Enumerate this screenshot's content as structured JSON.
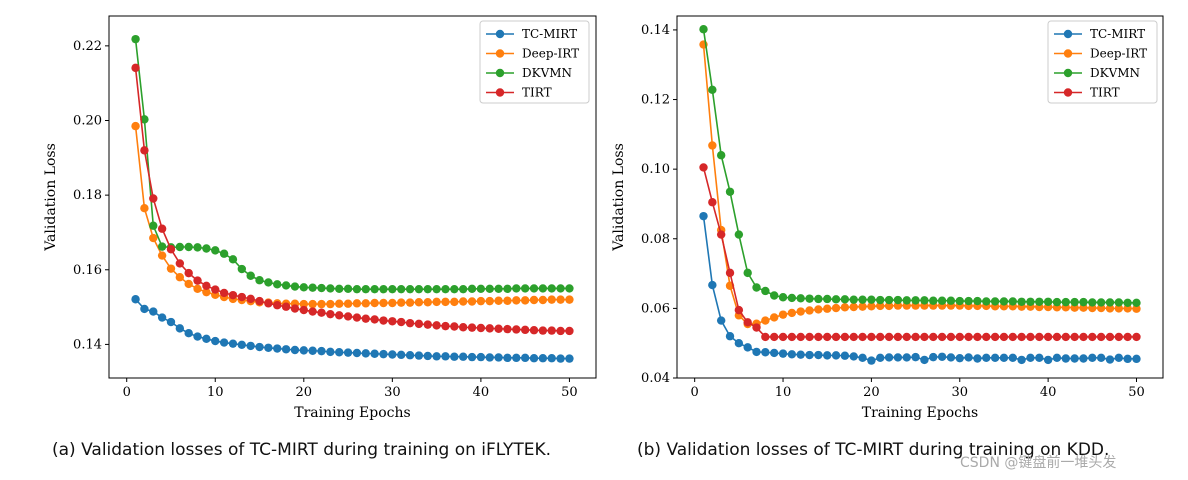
{
  "captions": {
    "a": "(a) Validation losses of TC-MIRT during training on iFLYTEK.",
    "b": "(b) Validation losses of TC-MIRT during training on KDD."
  },
  "watermark": "CSDN @键盘前一堆头发",
  "colors": {
    "TC-MIRT": "#1f77b4",
    "Deep-IRT": "#ff7f0e",
    "DKVMN": "#2ca02c",
    "TIRT": "#d62728"
  },
  "chart_data": [
    {
      "type": "line",
      "title": "",
      "xlabel": "Training Epochs",
      "ylabel": "Validation Loss",
      "xlim": [
        -2,
        53
      ],
      "ylim": [
        0.131,
        0.228
      ],
      "xticks": [
        "0",
        "10",
        "20",
        "30",
        "40",
        "50"
      ],
      "yticks": [
        "0.14",
        "0.16",
        "0.18",
        "0.20",
        "0.22"
      ],
      "legend_position": "top-right",
      "x": [
        1,
        2,
        3,
        4,
        5,
        6,
        7,
        8,
        9,
        10,
        11,
        12,
        13,
        14,
        15,
        16,
        17,
        18,
        19,
        20,
        21,
        22,
        23,
        24,
        25,
        26,
        27,
        28,
        29,
        30,
        31,
        32,
        33,
        34,
        35,
        36,
        37,
        38,
        39,
        40,
        41,
        42,
        43,
        44,
        45,
        46,
        47,
        48,
        49,
        50
      ],
      "series": [
        {
          "name": "TC-MIRT",
          "values": [
            0.1521,
            0.1495,
            0.1488,
            0.1472,
            0.146,
            0.1443,
            0.143,
            0.1421,
            0.1415,
            0.1409,
            0.1405,
            0.1402,
            0.1399,
            0.1396,
            0.1393,
            0.1391,
            0.1389,
            0.1387,
            0.1385,
            0.1384,
            0.1383,
            0.1382,
            0.138,
            0.1379,
            0.1378,
            0.1377,
            0.1376,
            0.1375,
            0.1374,
            0.1373,
            0.1372,
            0.1371,
            0.137,
            0.1369,
            0.1368,
            0.1368,
            0.1367,
            0.1367,
            0.1366,
            0.1366,
            0.1365,
            0.1365,
            0.1364,
            0.1364,
            0.1364,
            0.1363,
            0.1363,
            0.1363,
            0.1362,
            0.1362
          ]
        },
        {
          "name": "Deep-IRT",
          "values": [
            0.1985,
            0.1765,
            0.1685,
            0.1638,
            0.1603,
            0.158,
            0.1562,
            0.1549,
            0.154,
            0.1533,
            0.1527,
            0.1522,
            0.1519,
            0.1516,
            0.1513,
            0.1512,
            0.151,
            0.1509,
            0.1509,
            0.1508,
            0.1508,
            0.1508,
            0.1508,
            0.1509,
            0.1509,
            0.151,
            0.151,
            0.1511,
            0.1511,
            0.1511,
            0.1512,
            0.1512,
            0.1513,
            0.1513,
            0.1514,
            0.1514,
            0.1514,
            0.1515,
            0.1515,
            0.1516,
            0.1516,
            0.1517,
            0.1517,
            0.1518,
            0.1518,
            0.1519,
            0.1519,
            0.152,
            0.152,
            0.152
          ]
        },
        {
          "name": "DKVMN",
          "values": [
            0.2218,
            0.2003,
            0.1718,
            0.1662,
            0.166,
            0.1661,
            0.1661,
            0.166,
            0.1657,
            0.1652,
            0.1643,
            0.1628,
            0.1602,
            0.1584,
            0.1572,
            0.1566,
            0.1561,
            0.1558,
            0.1555,
            0.1553,
            0.1552,
            0.1551,
            0.155,
            0.1549,
            0.1549,
            0.1548,
            0.1548,
            0.1548,
            0.1548,
            0.1548,
            0.1548,
            0.1548,
            0.1548,
            0.1548,
            0.1548,
            0.1548,
            0.1548,
            0.1548,
            0.1549,
            0.1549,
            0.1549,
            0.1549,
            0.1549,
            0.155,
            0.155,
            0.155,
            0.155,
            0.155,
            0.155,
            0.155
          ]
        },
        {
          "name": "TIRT",
          "values": [
            0.2141,
            0.192,
            0.1791,
            0.171,
            0.1655,
            0.1617,
            0.1591,
            0.1571,
            0.1557,
            0.1547,
            0.1538,
            0.1532,
            0.1527,
            0.1522,
            0.1516,
            0.151,
            0.1505,
            0.1501,
            0.1496,
            0.1492,
            0.1488,
            0.1485,
            0.1481,
            0.1478,
            0.1475,
            0.1472,
            0.1469,
            0.1467,
            0.1464,
            0.1462,
            0.146,
            0.1457,
            0.1455,
            0.1453,
            0.1451,
            0.1449,
            0.1448,
            0.1446,
            0.1445,
            0.1444,
            0.1443,
            0.1442,
            0.1441,
            0.144,
            0.1439,
            0.1438,
            0.1437,
            0.1437,
            0.1436,
            0.1436
          ]
        }
      ]
    },
    {
      "type": "line",
      "title": "",
      "xlabel": "Training Epochs",
      "ylabel": "Validation Loss",
      "xlim": [
        -2,
        53
      ],
      "ylim": [
        0.04,
        0.144
      ],
      "xticks": [
        "0",
        "10",
        "20",
        "30",
        "40",
        "50"
      ],
      "yticks": [
        "0.04",
        "0.06",
        "0.08",
        "0.10",
        "0.12",
        "0.14"
      ],
      "legend_position": "top-right",
      "x": [
        1,
        2,
        3,
        4,
        5,
        6,
        7,
        8,
        9,
        10,
        11,
        12,
        13,
        14,
        15,
        16,
        17,
        18,
        19,
        20,
        21,
        22,
        23,
        24,
        25,
        26,
        27,
        28,
        29,
        30,
        31,
        32,
        33,
        34,
        35,
        36,
        37,
        38,
        39,
        40,
        41,
        42,
        43,
        44,
        45,
        46,
        47,
        48,
        49,
        50
      ],
      "series": [
        {
          "name": "TC-MIRT",
          "values": [
            0.0865,
            0.0667,
            0.0565,
            0.052,
            0.05,
            0.0488,
            0.0475,
            0.0474,
            0.0472,
            0.047,
            0.0468,
            0.0467,
            0.0466,
            0.0466,
            0.0465,
            0.0465,
            0.0464,
            0.0462,
            0.0458,
            0.045,
            0.0458,
            0.0459,
            0.0459,
            0.0459,
            0.046,
            0.0452,
            0.046,
            0.0461,
            0.0459,
            0.0457,
            0.0459,
            0.0456,
            0.0458,
            0.0458,
            0.0458,
            0.0458,
            0.0452,
            0.0458,
            0.0458,
            0.0452,
            0.0458,
            0.0456,
            0.0456,
            0.0456,
            0.0458,
            0.0458,
            0.0453,
            0.0458,
            0.0455,
            0.0455
          ]
        },
        {
          "name": "Deep-IRT",
          "values": [
            0.1358,
            0.1068,
            0.0825,
            0.0665,
            0.058,
            0.0555,
            0.0556,
            0.0565,
            0.0574,
            0.0582,
            0.0587,
            0.0591,
            0.0594,
            0.0597,
            0.0599,
            0.0601,
            0.0603,
            0.0604,
            0.0605,
            0.0606,
            0.0607,
            0.0607,
            0.0608,
            0.0608,
            0.0608,
            0.0608,
            0.0608,
            0.0608,
            0.0608,
            0.0608,
            0.0607,
            0.0607,
            0.0607,
            0.0606,
            0.0606,
            0.0606,
            0.0605,
            0.0605,
            0.0604,
            0.0604,
            0.0603,
            0.0603,
            0.0602,
            0.0602,
            0.0601,
            0.0601,
            0.06,
            0.06,
            0.06,
            0.0599
          ]
        },
        {
          "name": "DKVMN",
          "values": [
            0.1402,
            0.1228,
            0.104,
            0.0935,
            0.0812,
            0.0702,
            0.066,
            0.065,
            0.0637,
            0.0632,
            0.063,
            0.0629,
            0.0628,
            0.0627,
            0.0627,
            0.0626,
            0.0626,
            0.0625,
            0.0625,
            0.0625,
            0.0624,
            0.0624,
            0.0624,
            0.0623,
            0.0623,
            0.0623,
            0.0622,
            0.0622,
            0.0622,
            0.0621,
            0.0621,
            0.0621,
            0.062,
            0.062,
            0.062,
            0.062,
            0.0619,
            0.0619,
            0.0619,
            0.0619,
            0.0618,
            0.0618,
            0.0618,
            0.0618,
            0.0617,
            0.0617,
            0.0617,
            0.0617,
            0.0616,
            0.0616
          ]
        },
        {
          "name": "TIRT",
          "values": [
            0.1005,
            0.0905,
            0.0812,
            0.0702,
            0.0595,
            0.056,
            0.0545,
            0.0518,
            0.0518,
            0.0518,
            0.0518,
            0.0518,
            0.0518,
            0.0518,
            0.0518,
            0.0518,
            0.0518,
            0.0518,
            0.0518,
            0.0518,
            0.0518,
            0.0518,
            0.0518,
            0.0518,
            0.0518,
            0.0518,
            0.0518,
            0.0518,
            0.0518,
            0.0518,
            0.0518,
            0.0518,
            0.0518,
            0.0518,
            0.0518,
            0.0518,
            0.0518,
            0.0518,
            0.0518,
            0.0518,
            0.0518,
            0.0518,
            0.0518,
            0.0518,
            0.0518,
            0.0518,
            0.0518,
            0.0518,
            0.0518,
            0.0518
          ]
        }
      ]
    }
  ]
}
